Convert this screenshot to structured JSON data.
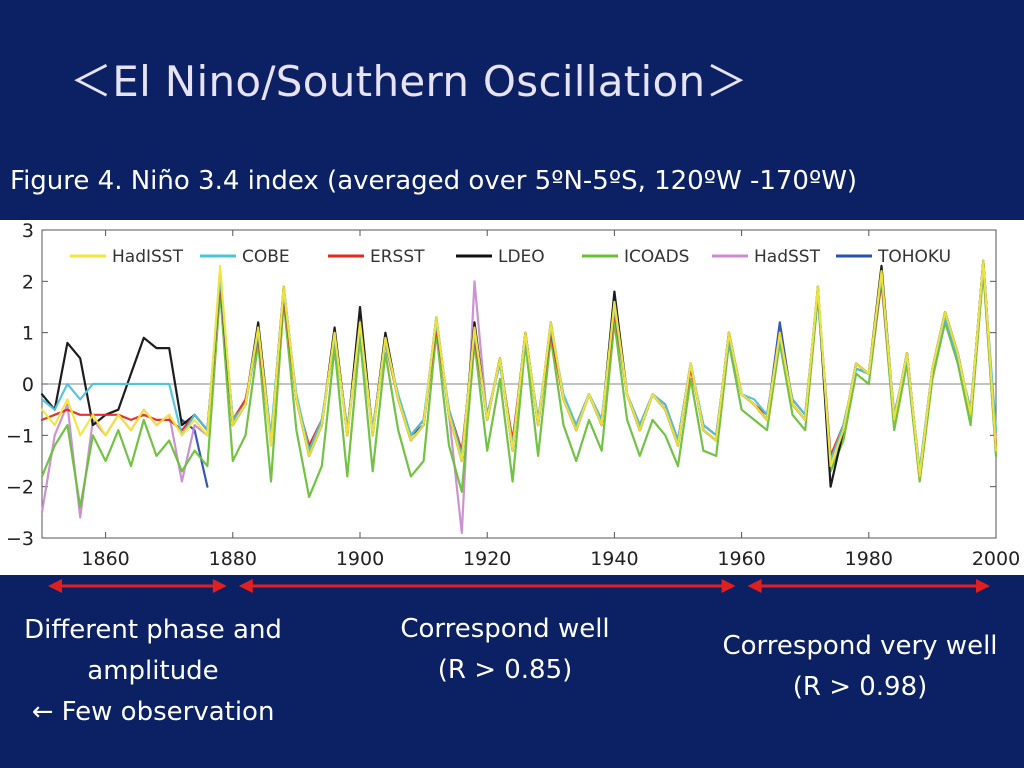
{
  "slide": {
    "title": "＜El Nino/Southern Oscillation＞",
    "caption": "Figure 4. Niño 3.4 index (averaged over 5ºN-5ºS, 120ºW -170ºW)"
  },
  "chart_data": {
    "type": "line",
    "title": "",
    "xlabel": "",
    "ylabel": "",
    "xlim": [
      1850,
      2000
    ],
    "ylim": [
      -3,
      3
    ],
    "x_ticks": [
      1860,
      1880,
      1900,
      1920,
      1940,
      1960,
      1980,
      2000
    ],
    "y_ticks": [
      3,
      2,
      1,
      0,
      -1,
      -2,
      -3
    ],
    "y_tick_labels": [
      "3",
      "2",
      "1",
      "0",
      "−1",
      "−2",
      "−3"
    ],
    "zero_line": true,
    "grid": false,
    "legend_placement": "top, single row",
    "x": [
      1850,
      1852,
      1854,
      1856,
      1858,
      1860,
      1862,
      1864,
      1866,
      1868,
      1870,
      1872,
      1874,
      1876,
      1878,
      1880,
      1882,
      1884,
      1886,
      1888,
      1890,
      1892,
      1894,
      1896,
      1898,
      1900,
      1902,
      1904,
      1906,
      1908,
      1910,
      1912,
      1914,
      1916,
      1918,
      1920,
      1922,
      1924,
      1926,
      1928,
      1930,
      1932,
      1934,
      1936,
      1938,
      1940,
      1942,
      1944,
      1946,
      1948,
      1950,
      1952,
      1954,
      1956,
      1958,
      1960,
      1962,
      1964,
      1966,
      1968,
      1970,
      1972,
      1974,
      1976,
      1978,
      1980,
      1982,
      1984,
      1986,
      1988,
      1990,
      1992,
      1994,
      1996,
      1998,
      2000
    ],
    "series": [
      {
        "name": "HadISST",
        "color": "#f2e63a",
        "values": [
          -0.5,
          -0.8,
          -0.3,
          -1.0,
          -0.6,
          -1.0,
          -0.6,
          -0.9,
          -0.5,
          -0.8,
          -0.6,
          -1.0,
          -0.7,
          -1.0,
          2.3,
          -0.8,
          -0.4,
          1.1,
          -1.2,
          1.9,
          -0.3,
          -1.4,
          -0.8,
          1.0,
          -1.0,
          1.2,
          -1.0,
          0.9,
          -0.3,
          -1.1,
          -0.8,
          1.3,
          -0.6,
          -1.5,
          1.1,
          -0.7,
          0.5,
          -1.3,
          1.0,
          -0.8,
          1.2,
          -0.3,
          -0.9,
          -0.2,
          -0.8,
          1.6,
          -0.2,
          -0.9,
          -0.2,
          -0.5,
          -1.2,
          0.4,
          -0.9,
          -1.1,
          1.0,
          -0.2,
          -0.4,
          -0.7,
          1.0,
          -0.4,
          -0.7,
          1.9,
          -1.6,
          -0.9,
          0.4,
          0.2,
          2.2,
          -0.7,
          0.6,
          -1.8,
          0.3,
          1.4,
          0.6,
          -0.6,
          2.4,
          -1.3
        ]
      },
      {
        "name": "COBE",
        "color": "#4fc3d6",
        "values": [
          -0.3,
          -0.5,
          0.0,
          -0.3,
          0.0,
          0.0,
          0.0,
          0.0,
          0.0,
          0.0,
          0.0,
          -1.0,
          -0.6,
          -0.9,
          2.1,
          -0.7,
          -0.4,
          1.0,
          -1.0,
          1.8,
          -0.2,
          -1.3,
          -0.7,
          0.9,
          -0.9,
          1.1,
          -0.9,
          0.8,
          -0.2,
          -1.0,
          -0.7,
          1.2,
          -0.5,
          -1.4,
          1.0,
          -0.6,
          0.4,
          -1.2,
          0.9,
          -0.7,
          1.1,
          -0.2,
          -0.8,
          -0.2,
          -0.7,
          1.5,
          -0.2,
          -0.8,
          -0.2,
          -0.4,
          -1.1,
          0.4,
          -0.8,
          -1.0,
          0.9,
          -0.2,
          -0.3,
          -0.6,
          0.9,
          -0.3,
          -0.6,
          1.8,
          -1.5,
          -0.8,
          0.3,
          0.2,
          2.1,
          -0.6,
          0.5,
          -1.7,
          0.3,
          1.3,
          0.5,
          -0.5,
          2.3,
          -0.9
        ]
      },
      {
        "name": "ERSST",
        "color": "#e02a22",
        "values": [
          -0.7,
          -0.6,
          -0.5,
          -0.6,
          -0.6,
          -0.6,
          -0.6,
          -0.7,
          -0.6,
          -0.7,
          -0.7,
          -0.9,
          -0.6,
          -0.9,
          2.0,
          -0.7,
          -0.3,
          0.9,
          -1.1,
          1.7,
          -0.3,
          -1.2,
          -0.7,
          0.9,
          -0.9,
          1.1,
          -0.9,
          0.8,
          -0.3,
          -1.0,
          -0.7,
          1.1,
          -0.5,
          -1.3,
          0.9,
          -0.6,
          0.4,
          -1.1,
          0.9,
          -0.7,
          1.0,
          -0.3,
          -0.8,
          -0.2,
          -0.7,
          1.4,
          -0.2,
          -0.8,
          -0.2,
          -0.4,
          -1.1,
          0.3,
          -0.8,
          -1.0,
          0.9,
          -0.2,
          -0.4,
          -0.6,
          0.9,
          -0.3,
          -0.6,
          1.8,
          -1.4,
          -0.8,
          0.3,
          0.2,
          2.0,
          -0.6,
          0.5,
          -1.7,
          0.3,
          1.3,
          0.5,
          -0.5,
          2.3,
          -1.2
        ]
      },
      {
        "name": "LDEO",
        "color": "#111111",
        "values": [
          -0.2,
          -0.5,
          0.8,
          0.5,
          -0.8,
          -0.6,
          -0.5,
          0.2,
          0.9,
          0.7,
          0.7,
          -0.8,
          -0.6,
          -0.9,
          2.0,
          -0.8,
          -0.4,
          1.2,
          -1.1,
          1.9,
          -0.3,
          -1.4,
          -0.8,
          1.1,
          -1.0,
          1.5,
          -1.0,
          1.0,
          -0.3,
          -1.1,
          -0.8,
          1.3,
          -0.6,
          -1.5,
          1.2,
          -0.7,
          0.5,
          -1.3,
          1.0,
          -0.8,
          1.2,
          -0.3,
          -0.9,
          -0.2,
          -0.8,
          1.8,
          -0.2,
          -0.9,
          -0.2,
          -0.5,
          -1.2,
          0.4,
          -0.9,
          -1.1,
          1.0,
          -0.2,
          -0.4,
          -0.7,
          1.0,
          -0.4,
          -0.7,
          1.9,
          -2.0,
          -0.9,
          0.4,
          0.2,
          2.3,
          -0.7,
          0.6,
          -1.8,
          0.3,
          1.4,
          0.6,
          -0.6,
          2.4,
          -1.3
        ]
      },
      {
        "name": "ICOADS",
        "color": "#6abf3a",
        "values": [
          -1.8,
          -1.2,
          -0.8,
          -2.4,
          -1.0,
          -1.5,
          -0.9,
          -1.6,
          -0.7,
          -1.4,
          -1.1,
          -1.7,
          -1.3,
          -1.6,
          1.8,
          -1.5,
          -1.0,
          0.8,
          -1.9,
          1.6,
          -0.9,
          -2.2,
          -1.6,
          0.7,
          -1.8,
          0.9,
          -1.7,
          0.6,
          -0.9,
          -1.8,
          -1.5,
          1.0,
          -1.2,
          -2.1,
          0.8,
          -1.3,
          0.1,
          -1.9,
          0.8,
          -1.4,
          0.9,
          -0.8,
          -1.5,
          -0.7,
          -1.3,
          1.2,
          -0.7,
          -1.4,
          -0.7,
          -1.0,
          -1.6,
          0.1,
          -1.3,
          -1.4,
          0.8,
          -0.5,
          -0.7,
          -0.9,
          0.8,
          -0.6,
          -0.9,
          1.7,
          -1.7,
          -1.1,
          0.2,
          0.0,
          2.0,
          -0.9,
          0.4,
          -1.9,
          0.1,
          1.2,
          0.4,
          -0.8,
          2.2,
          -1.4
        ]
      },
      {
        "name": "HadSST",
        "color": "#c98ccf",
        "values": [
          -2.5,
          -1.0,
          -0.4,
          -2.6,
          -0.7,
          -1.0,
          -0.6,
          -0.9,
          -0.5,
          -0.8,
          -0.6,
          -1.9,
          -0.8,
          -1.0,
          2.1,
          -0.8,
          -0.4,
          1.0,
          -1.2,
          1.8,
          -0.3,
          -1.4,
          -0.8,
          1.0,
          -1.0,
          1.1,
          -1.0,
          0.9,
          -0.3,
          -1.1,
          -0.8,
          1.2,
          -0.6,
          -2.9,
          2.0,
          -0.7,
          0.5,
          -1.3,
          1.0,
          -0.8,
          1.1,
          -0.3,
          -0.9,
          -0.2,
          -0.8,
          1.5,
          -0.2,
          -0.9,
          -0.2,
          -0.5,
          -1.2,
          0.4,
          -0.9,
          -1.1,
          1.0,
          -0.2,
          -0.4,
          -0.7,
          1.0,
          -0.4,
          -0.7,
          1.8,
          -1.6,
          -0.9,
          0.4,
          0.2,
          2.1,
          -0.7,
          0.6,
          -1.8,
          0.3,
          1.4,
          0.6,
          -0.6,
          2.4,
          -1.3
        ]
      },
      {
        "name": "TOHOKU",
        "color": "#2a4fb0",
        "values": [
          null,
          null,
          null,
          null,
          null,
          null,
          null,
          null,
          null,
          null,
          null,
          -0.7,
          -0.9,
          -2.0,
          null,
          -0.7,
          -0.4,
          1.0,
          -1.1,
          1.8,
          -0.3,
          -1.3,
          -0.8,
          1.0,
          -0.9,
          1.2,
          -0.9,
          0.9,
          -0.3,
          -1.0,
          -0.8,
          1.2,
          -0.6,
          -1.4,
          1.0,
          -0.7,
          0.5,
          -1.2,
          1.0,
          -0.8,
          1.1,
          -0.3,
          -0.8,
          -0.2,
          -0.8,
          1.5,
          -0.2,
          -0.9,
          -0.2,
          -0.5,
          -1.1,
          0.4,
          -0.9,
          -1.1,
          1.0,
          -0.2,
          -0.4,
          -0.7,
          1.2,
          -0.4,
          -0.7,
          1.8,
          -1.6,
          -0.9,
          0.4,
          0.2,
          2.1,
          -0.7,
          0.6,
          -1.8,
          0.3,
          1.4,
          0.6,
          -0.6,
          2.4,
          -1.2
        ]
      }
    ]
  },
  "periods": [
    {
      "from": 1850,
      "to": 1880,
      "label_lines": [
        "Different phase and",
        "amplitude",
        "← Few observation"
      ]
    },
    {
      "from": 1880,
      "to": 1960,
      "label_lines": [
        "Correspond well",
        "(R > 0.85)"
      ]
    },
    {
      "from": 1960,
      "to": 2000,
      "label_lines": [
        "Correspond very well",
        "(R > 0.98)"
      ]
    }
  ],
  "colors": {
    "background": "#0b2164",
    "arrow": "#e02020",
    "title": "#e7e3f5"
  }
}
